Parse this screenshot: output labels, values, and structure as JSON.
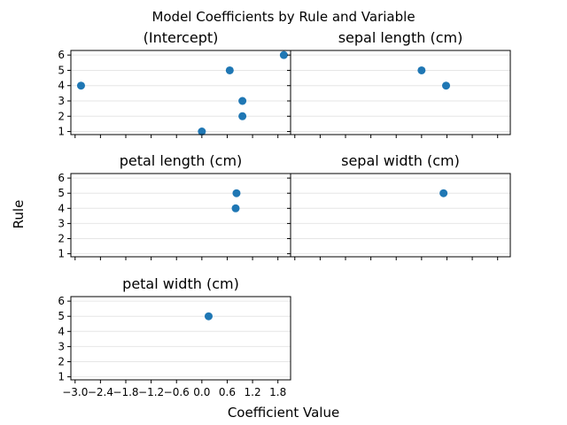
{
  "figure": {
    "suptitle": "Model Coefficients by Rule and Variable",
    "xlabel": "Coefficient Value",
    "ylabel": "Rule"
  },
  "chart_data": {
    "type": "scatter",
    "title": "Model Coefficients by Rule and Variable",
    "xlabel": "Coefficient Value",
    "ylabel": "Rule",
    "xlim": [
      -3.1,
      2.1
    ],
    "ylim": [
      0.8,
      6.3
    ],
    "xticks": [
      -3.0,
      -2.4,
      -1.8,
      -1.2,
      -0.6,
      0.0,
      0.6,
      1.2,
      1.8
    ],
    "xtick_labels": [
      "−3.0",
      "−2.4",
      "−1.8",
      "−1.2",
      "−0.6",
      "0.0",
      "0.6",
      "1.2",
      "1.8"
    ],
    "yticks": [
      1,
      2,
      3,
      4,
      5,
      6
    ],
    "ytick_labels": [
      "1",
      "2",
      "3",
      "4",
      "5",
      "6"
    ],
    "grid": "y-axis gridlines only",
    "subplots": [
      {
        "title": "(Intercept)",
        "points": [
          {
            "x": 0.0,
            "y": 1
          },
          {
            "x": 0.96,
            "y": 2
          },
          {
            "x": 0.96,
            "y": 3
          },
          {
            "x": -2.86,
            "y": 4
          },
          {
            "x": 0.66,
            "y": 5
          },
          {
            "x": 1.94,
            "y": 6
          }
        ]
      },
      {
        "title": "sepal length (cm)",
        "points": [
          {
            "x": 0.0,
            "y": 5
          },
          {
            "x": 0.58,
            "y": 4
          }
        ]
      },
      {
        "title": "petal length (cm)",
        "points": [
          {
            "x": 0.82,
            "y": 5
          },
          {
            "x": 0.8,
            "y": 4
          }
        ]
      },
      {
        "title": "sepal width (cm)",
        "points": [
          {
            "x": 0.52,
            "y": 5
          }
        ]
      },
      {
        "title": "petal width (cm)",
        "points": [
          {
            "x": 0.16,
            "y": 5
          }
        ]
      }
    ]
  }
}
